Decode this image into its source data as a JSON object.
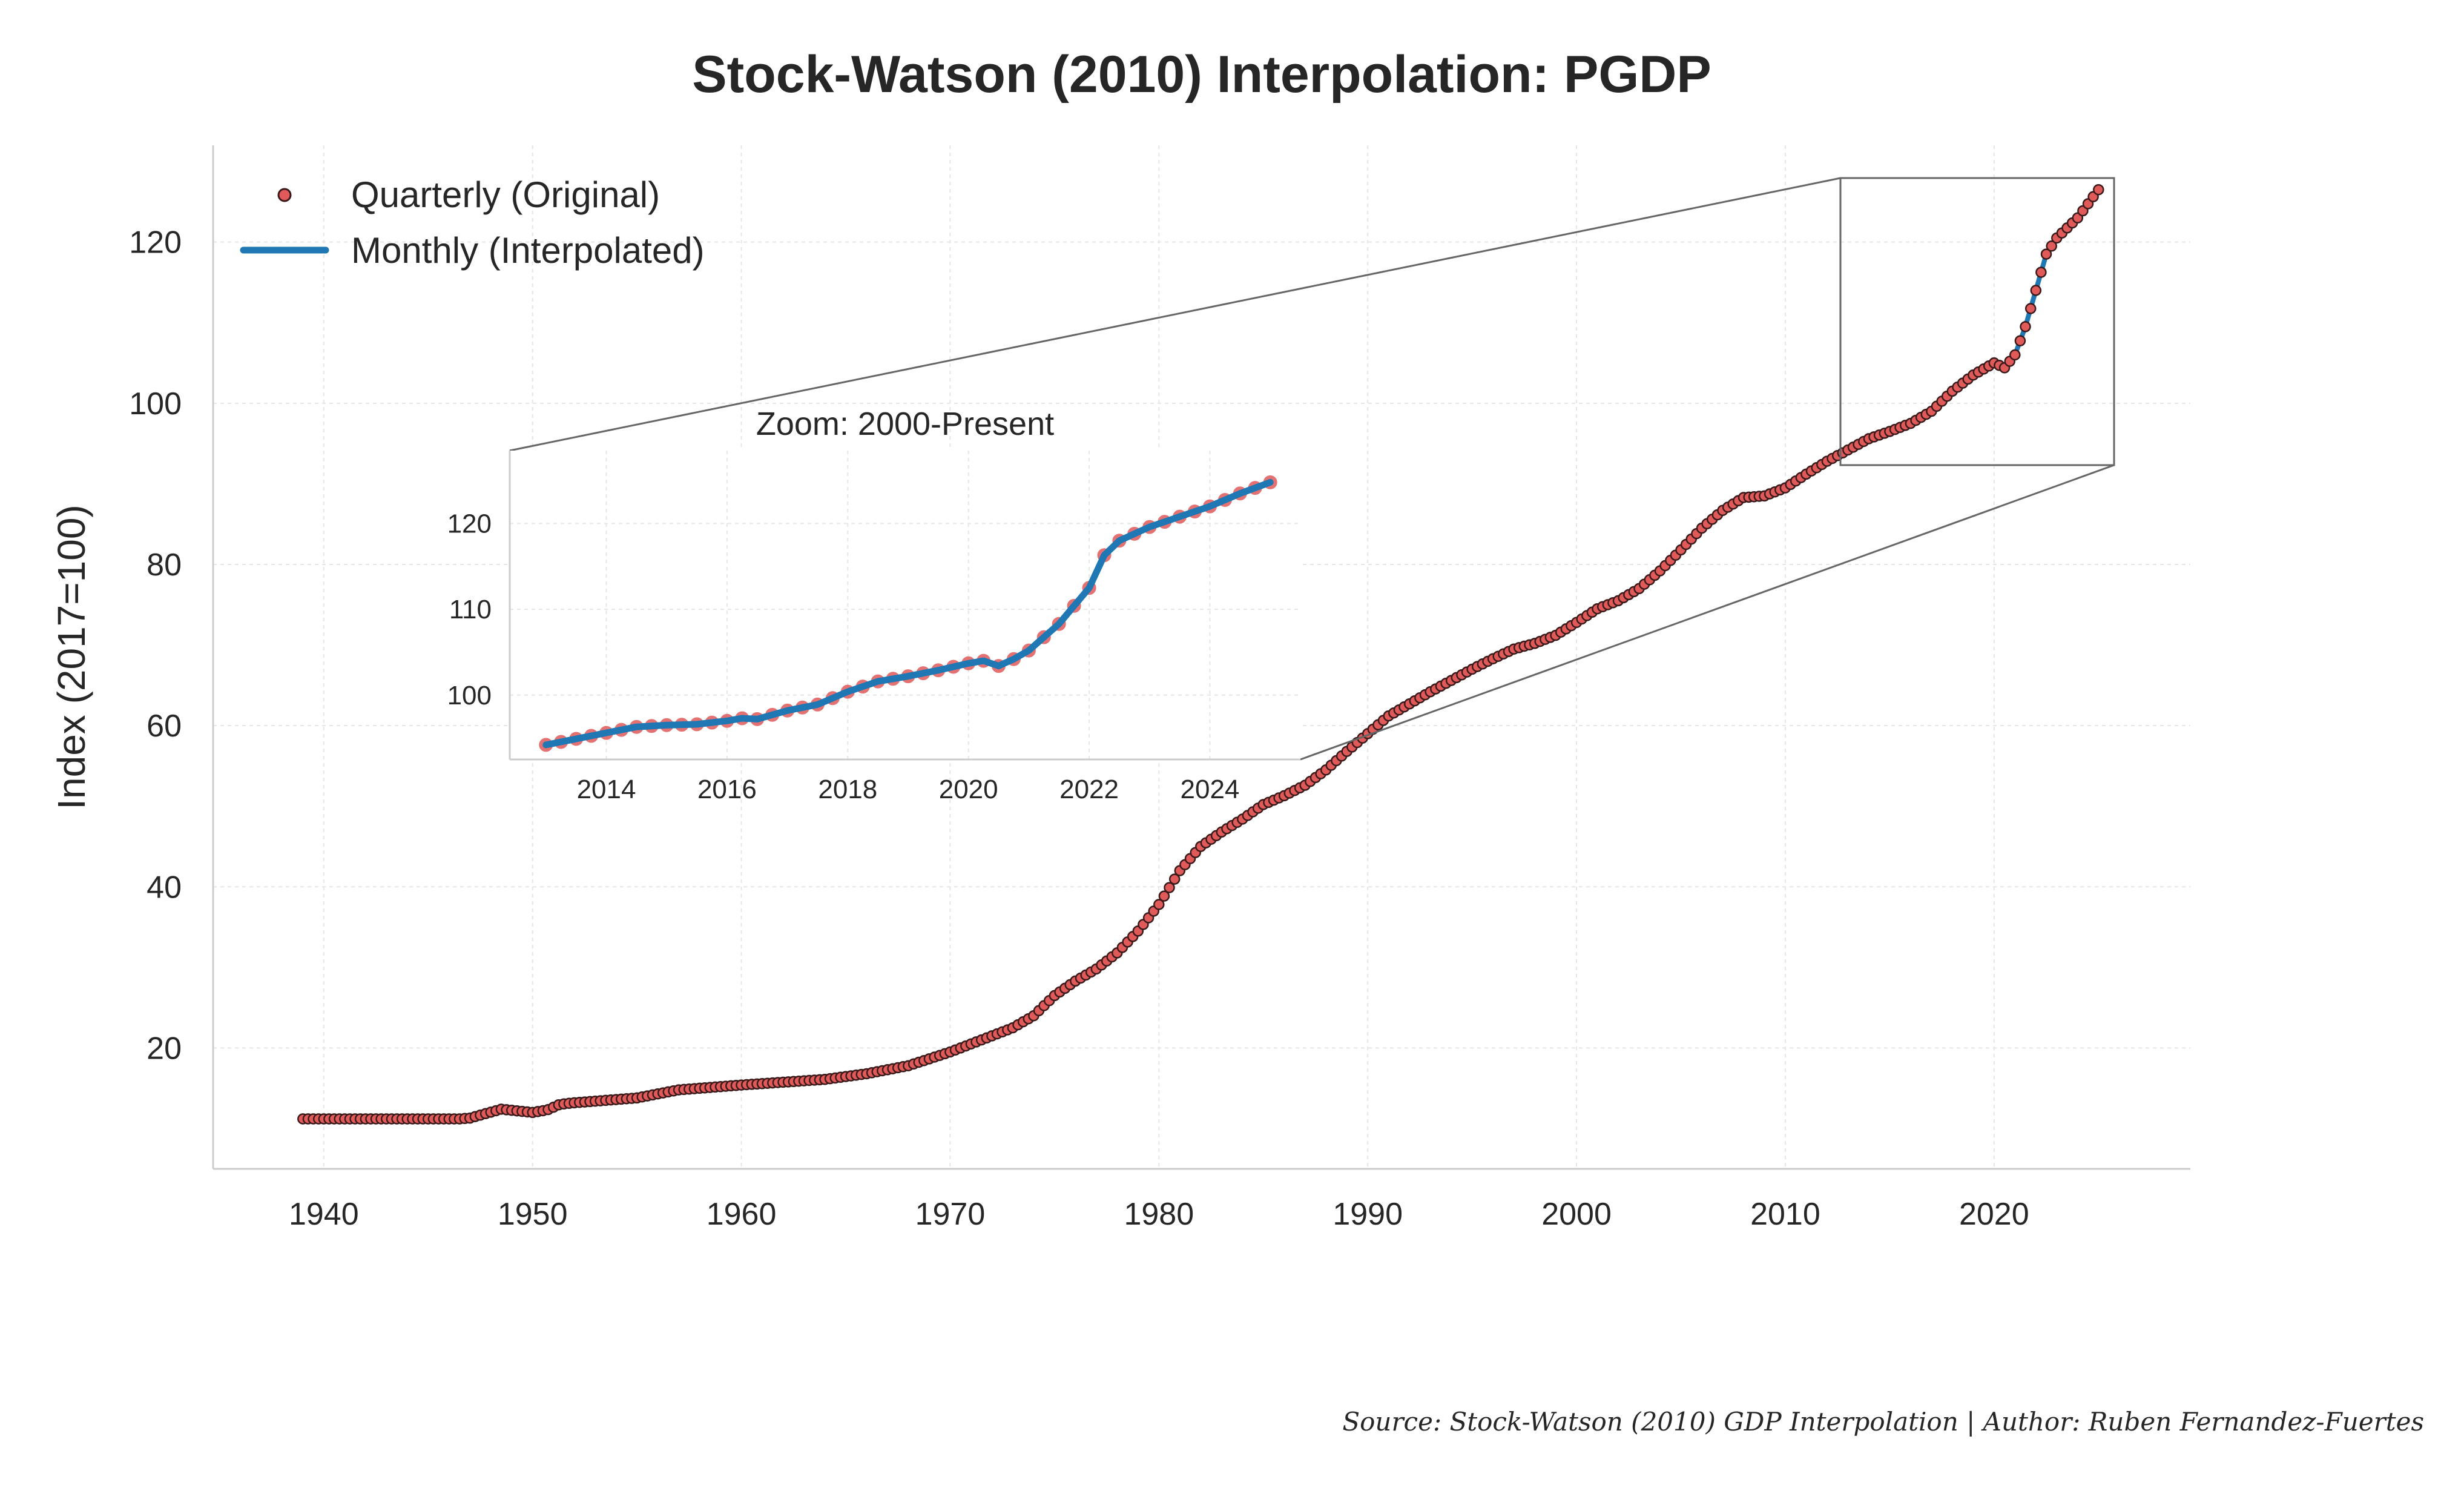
{
  "title": "Stock-Watson (2010) Interpolation: PGDP",
  "source_note": "Source: Stock-Watson (2010) GDP Interpolation | Author: Ruben Fernandez-Fuertes",
  "colors": {
    "quarterly_marker": "#e05a5a",
    "quarterly_edge": "#3a1a1a",
    "monthly_line": "#1f77b4",
    "axis": "#cccccc",
    "grid": "#e6e6e6",
    "zoom_box": "#666666"
  },
  "chart_data": [
    {
      "type": "line",
      "title": "Stock-Watson (2010) Interpolation: PGDP",
      "xlabel": "",
      "ylabel": "Index (2017=100)",
      "xlim": [
        1934.7,
        2029.4
      ],
      "ylim": [
        5,
        132
      ],
      "xticks": [
        1940,
        1950,
        1960,
        1970,
        1980,
        1990,
        2000,
        2010,
        2020
      ],
      "yticks": [
        20,
        40,
        60,
        80,
        100,
        120
      ],
      "grid": true,
      "legend": {
        "position": "top-left"
      },
      "series": [
        {
          "name": "Quarterly (Original)",
          "style": "markers"
        },
        {
          "name": "Monthly (Interpolated)",
          "style": "line"
        }
      ],
      "anchors": [
        [
          1939.0,
          11.2
        ],
        [
          1946.5,
          11.2
        ],
        [
          1947.0,
          11.3
        ],
        [
          1948.5,
          12.4
        ],
        [
          1950.0,
          12.0
        ],
        [
          1950.7,
          12.3
        ],
        [
          1951.3,
          13.0
        ],
        [
          1952.0,
          13.2
        ],
        [
          1955.0,
          13.8
        ],
        [
          1957.0,
          14.8
        ],
        [
          1960.0,
          15.4
        ],
        [
          1964.0,
          16.1
        ],
        [
          1966.0,
          16.8
        ],
        [
          1968.0,
          17.8
        ],
        [
          1970.0,
          19.5
        ],
        [
          1972.0,
          21.5
        ],
        [
          1973.0,
          22.5
        ],
        [
          1974.0,
          24.0
        ],
        [
          1975.0,
          26.5
        ],
        [
          1976.0,
          28.3
        ],
        [
          1977.0,
          29.8
        ],
        [
          1978.0,
          31.8
        ],
        [
          1979.0,
          34.5
        ],
        [
          1980.0,
          37.8
        ],
        [
          1981.0,
          42.0
        ],
        [
          1982.0,
          45.0
        ],
        [
          1983.0,
          46.8
        ],
        [
          1984.0,
          48.4
        ],
        [
          1985.0,
          50.2
        ],
        [
          1986.0,
          51.3
        ],
        [
          1987.0,
          52.6
        ],
        [
          1988.0,
          54.5
        ],
        [
          1989.0,
          56.8
        ],
        [
          1990.0,
          59.0
        ],
        [
          1991.0,
          61.2
        ],
        [
          1992.0,
          62.7
        ],
        [
          1993.0,
          64.2
        ],
        [
          1994.0,
          65.6
        ],
        [
          1995.0,
          67.0
        ],
        [
          1996.0,
          68.3
        ],
        [
          1997.0,
          69.5
        ],
        [
          1998.0,
          70.2
        ],
        [
          1999.0,
          71.2
        ],
        [
          2000.0,
          72.8
        ],
        [
          2001.0,
          74.5
        ],
        [
          2002.0,
          75.5
        ],
        [
          2003.0,
          77.0
        ],
        [
          2004.0,
          79.2
        ],
        [
          2005.0,
          81.8
        ],
        [
          2006.0,
          84.5
        ],
        [
          2007.0,
          86.7
        ],
        [
          2008.0,
          88.3
        ],
        [
          2009.0,
          88.5
        ],
        [
          2010.0,
          89.5
        ],
        [
          2011.0,
          91.2
        ],
        [
          2012.0,
          92.8
        ],
        [
          2013.0,
          94.2
        ],
        [
          2014.0,
          95.6
        ],
        [
          2015.0,
          96.5
        ],
        [
          2016.0,
          97.5
        ],
        [
          2017.0,
          99.0
        ],
        [
          2018.0,
          101.5
        ],
        [
          2019.0,
          103.5
        ],
        [
          2020.0,
          105.0
        ],
        [
          2020.5,
          104.4
        ],
        [
          2021.0,
          106.0
        ],
        [
          2021.5,
          109.5
        ],
        [
          2022.0,
          114.0
        ],
        [
          2022.5,
          118.5
        ],
        [
          2023.0,
          120.5
        ],
        [
          2024.0,
          123.0
        ],
        [
          2025.0,
          126.5
        ]
      ]
    },
    {
      "type": "line",
      "title": "Zoom: 2000-Present",
      "xlabel": "",
      "ylabel": "",
      "xlim": [
        2012.4,
        2025.5
      ],
      "ylim": [
        92.5,
        128.5
      ],
      "xticks": [
        2014,
        2016,
        2018,
        2020,
        2022,
        2024
      ],
      "yticks": [
        100,
        110,
        120
      ],
      "grid": true,
      "anchors": [
        [
          2013.0,
          94.2
        ],
        [
          2014.0,
          95.6
        ],
        [
          2014.5,
          96.3
        ],
        [
          2015.0,
          96.5
        ],
        [
          2015.5,
          96.6
        ],
        [
          2016.0,
          97.0
        ],
        [
          2016.25,
          97.3
        ],
        [
          2016.5,
          97.2
        ],
        [
          2017.0,
          98.2
        ],
        [
          2017.5,
          98.9
        ],
        [
          2018.0,
          100.4
        ],
        [
          2018.5,
          101.6
        ],
        [
          2019.0,
          102.2
        ],
        [
          2019.5,
          102.9
        ],
        [
          2020.0,
          103.7
        ],
        [
          2020.25,
          104.0
        ],
        [
          2020.5,
          103.4
        ],
        [
          2020.75,
          104.2
        ],
        [
          2021.0,
          105.2
        ],
        [
          2021.5,
          108.3
        ],
        [
          2022.0,
          112.5
        ],
        [
          2022.25,
          116.3
        ],
        [
          2022.5,
          118.0
        ],
        [
          2023.0,
          119.6
        ],
        [
          2023.5,
          120.8
        ],
        [
          2024.0,
          122.0
        ],
        [
          2024.5,
          123.5
        ],
        [
          2025.0,
          124.8
        ]
      ]
    }
  ]
}
